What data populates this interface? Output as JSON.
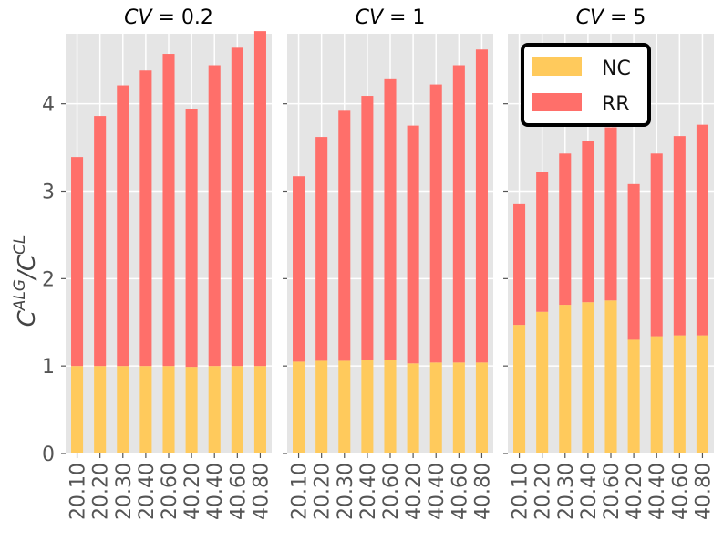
{
  "chart_data": {
    "type": "bar",
    "stacked": true,
    "ylabel_base": "C",
    "ylabel_sup1": "ALG",
    "ylabel_sep": "/C",
    "ylabel_sup2": "CL",
    "ylim": [
      0,
      4.8
    ],
    "yticks": [
      "0",
      "1",
      "2",
      "3",
      "4"
    ],
    "categories": [
      "20.10",
      "20.20",
      "20.30",
      "20.40",
      "20.60",
      "40.20",
      "40.40",
      "40.60",
      "40.80"
    ],
    "legend": {
      "position": "top-right of third panel",
      "entries": [
        {
          "name": "NC",
          "color": "#ffca5c"
        },
        {
          "name": "RR",
          "color": "#ff6f6a"
        }
      ]
    },
    "panels": [
      {
        "title_var": "CV",
        "title_eq": " = ",
        "title_value": "0.2",
        "series": [
          {
            "name": "NC",
            "values": [
              1.0,
              1.0,
              1.0,
              1.0,
              1.0,
              0.99,
              1.0,
              1.0,
              1.0
            ]
          },
          {
            "name": "RR",
            "values": [
              2.39,
              2.86,
              3.21,
              3.38,
              3.57,
              2.95,
              3.44,
              3.64,
              3.83
            ]
          }
        ]
      },
      {
        "title_var": "CV",
        "title_eq": " = ",
        "title_value": "1",
        "series": [
          {
            "name": "NC",
            "values": [
              1.05,
              1.06,
              1.06,
              1.07,
              1.07,
              1.03,
              1.04,
              1.04,
              1.04
            ]
          },
          {
            "name": "RR",
            "values": [
              2.12,
              2.56,
              2.86,
              3.02,
              3.21,
              2.72,
              3.18,
              3.4,
              3.58
            ]
          }
        ]
      },
      {
        "title_var": "CV",
        "title_eq": " = ",
        "title_value": "5",
        "series": [
          {
            "name": "NC",
            "values": [
              1.47,
              1.62,
              1.7,
              1.73,
              1.75,
              1.3,
              1.34,
              1.35,
              1.35
            ]
          },
          {
            "name": "RR",
            "values": [
              1.38,
              1.6,
              1.73,
              1.84,
              1.98,
              1.78,
              2.09,
              2.28,
              2.41
            ]
          }
        ]
      }
    ]
  }
}
